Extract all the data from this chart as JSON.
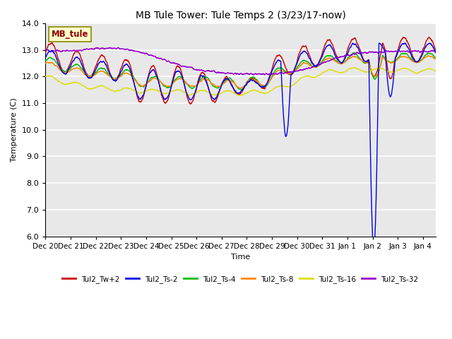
{
  "title": "MB Tule Tower: Tule Temps 2 (3/23/17-now)",
  "ylabel": "Temperature (C)",
  "xlabel": "Time",
  "ylim": [
    6.0,
    14.0
  ],
  "yticks": [
    6.0,
    7.0,
    8.0,
    9.0,
    10.0,
    11.0,
    12.0,
    13.0,
    14.0
  ],
  "xtick_labels": [
    "Dec 20",
    "Dec 21",
    "Dec 22",
    "Dec 23",
    "Dec 24",
    "Dec 25",
    "Dec 26",
    "Dec 27",
    "Dec 28",
    "Dec 29",
    "Dec 30",
    "Dec 31",
    "Jan 1",
    "Jan 2",
    "Jan 3",
    "Jan 4"
  ],
  "bg_color": "#e8e8e8",
  "grid_color": "#ffffff",
  "legend_label": "MB_tule",
  "series_colors": {
    "Tul2_Tw+2": "#cc0000",
    "Tul2_Ts-2": "#0000ee",
    "Tul2_Ts-4": "#00bb00",
    "Tul2_Ts-8": "#ff8800",
    "Tul2_Ts-16": "#dddd00",
    "Tul2_Ts-32": "#9900cc"
  },
  "series_lw": 1.0
}
